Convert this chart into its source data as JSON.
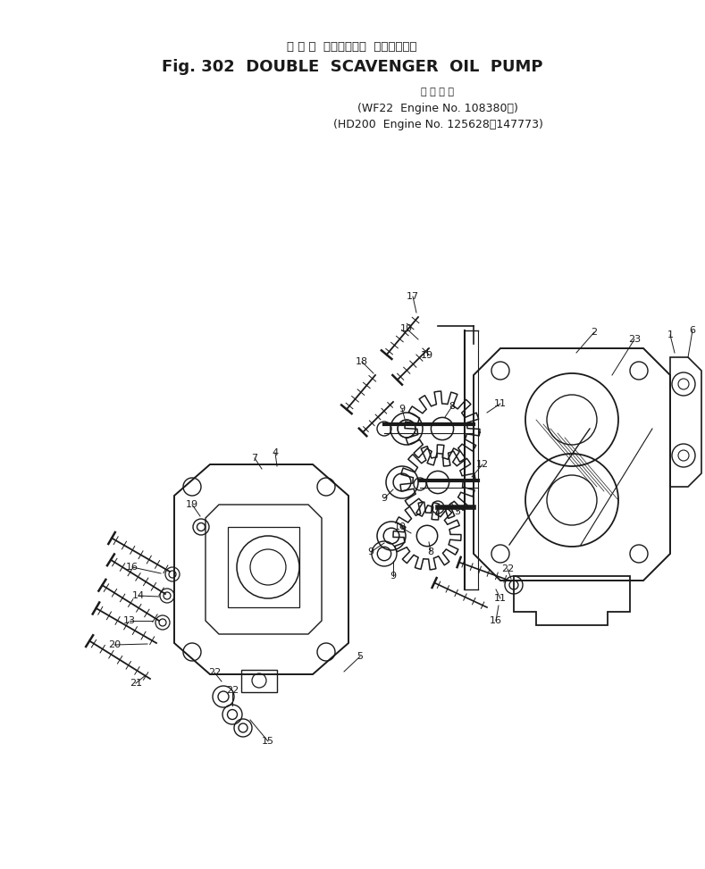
{
  "title_japanese": "ダ ブ ル  スカベンジャ  オイルポンプ",
  "title_english": "Fig. 302  DOUBLE  SCAVENGER  OIL  PUMP",
  "subtitle_japanese": "適 用 号 機",
  "subtitle_line1": "(WF22  Engine No. 108380～)",
  "subtitle_line2": "(HD200  Engine No. 125628～147773)",
  "bg_color": "#ffffff",
  "line_color": "#1a1a1a",
  "text_color": "#1a1a1a"
}
